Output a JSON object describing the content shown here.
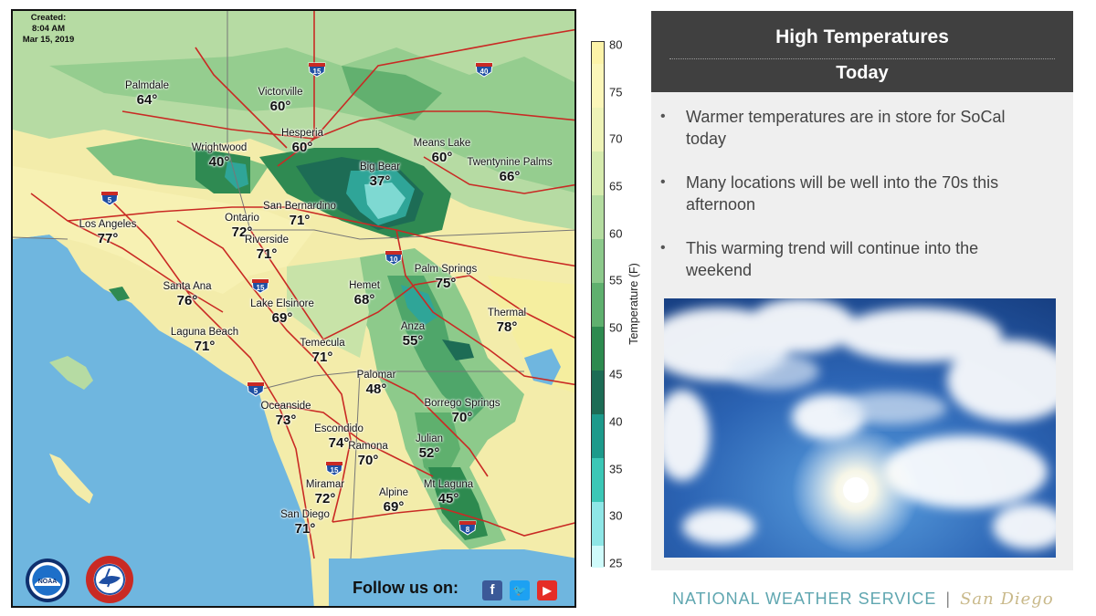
{
  "map": {
    "created_label": "Created:",
    "created_time": "8:04 AM",
    "created_date": "Mar 15, 2019",
    "cities": [
      {
        "name": "Palmdale",
        "temp": "64°"
      },
      {
        "name": "Victorville",
        "temp": "60°"
      },
      {
        "name": "Hesperia",
        "temp": "60°"
      },
      {
        "name": "Wrightwood",
        "temp": "40°"
      },
      {
        "name": "Big Bear",
        "temp": "37°"
      },
      {
        "name": "Means Lake",
        "temp": "60°"
      },
      {
        "name": "Twentynine Palms",
        "temp": "66°"
      },
      {
        "name": "San Bernardino",
        "temp": "71°"
      },
      {
        "name": "Los Angeles",
        "temp": "77°"
      },
      {
        "name": "Ontario",
        "temp": "72°"
      },
      {
        "name": "Riverside",
        "temp": "71°"
      },
      {
        "name": "Santa Ana",
        "temp": "76°"
      },
      {
        "name": "Lake Elsinore",
        "temp": "69°"
      },
      {
        "name": "Hemet",
        "temp": "68°"
      },
      {
        "name": "Palm Springs",
        "temp": "75°"
      },
      {
        "name": "Thermal",
        "temp": "78°"
      },
      {
        "name": "Laguna Beach",
        "temp": "71°"
      },
      {
        "name": "Temecula",
        "temp": "71°"
      },
      {
        "name": "Anza",
        "temp": "55°"
      },
      {
        "name": "Palomar",
        "temp": "48°"
      },
      {
        "name": "Borrego Springs",
        "temp": "70°"
      },
      {
        "name": "Oceanside",
        "temp": "73°"
      },
      {
        "name": "Escondido",
        "temp": "74°"
      },
      {
        "name": "Ramona",
        "temp": "70°"
      },
      {
        "name": "Julian",
        "temp": "52°"
      },
      {
        "name": "Miramar",
        "temp": "72°"
      },
      {
        "name": "Alpine",
        "temp": "69°"
      },
      {
        "name": "Mt Laguna",
        "temp": "45°"
      },
      {
        "name": "San Diego",
        "temp": "71°"
      }
    ],
    "shields": [
      "15",
      "40",
      "5",
      "10",
      "15",
      "5",
      "15",
      "8"
    ],
    "follow_label": "Follow us on:",
    "social_icons": [
      "facebook-icon",
      "twitter-icon",
      "youtube-icon"
    ],
    "logos": [
      "NOAA",
      "NATIONAL WEATHER SERVICE"
    ]
  },
  "scale": {
    "ticks": [
      "80",
      "75",
      "70",
      "65",
      "60",
      "55",
      "50",
      "45",
      "40",
      "35",
      "30",
      "25"
    ],
    "label": "Temperature (F)",
    "colors": [
      "#fcf3a8",
      "#fbf6b9",
      "#eef3b7",
      "#d6ebae",
      "#b4dca0",
      "#8cc98b",
      "#5fb06e",
      "#2d8a4f",
      "#1d6c55",
      "#1d9a8b",
      "#3bc7b6",
      "#8ee6e6",
      "#cffbfb"
    ]
  },
  "panel": {
    "title": "High Temperatures",
    "subtitle": "Today",
    "bullets": [
      "Warmer temperatures are in store for SoCal today",
      "Many locations will be well into the 70s this afternoon",
      "This warming trend will continue into the weekend"
    ],
    "footer_org": "NATIONAL WEATHER SERVICE",
    "footer_sep": "|",
    "footer_office": "San Diego"
  }
}
